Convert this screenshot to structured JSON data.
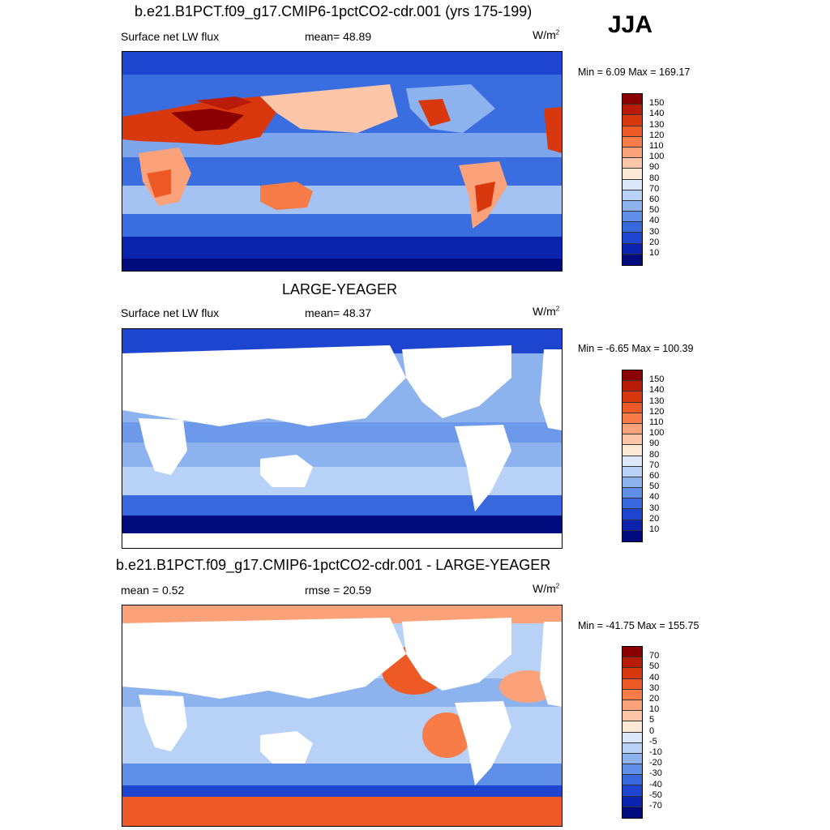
{
  "season": "JJA",
  "panels": [
    {
      "title": "b.e21.B1PCT.f09_g17.CMIP6-1pctCO2-cdr.001 (yrs 175-199)",
      "left_label": "Surface net LW flux",
      "center_label": "mean=  48.89",
      "units_base": "W/m",
      "units_exp": "2",
      "minmax": "Min =   6.09 Max = 169.17",
      "colorbar": {
        "labels": [
          "150",
          "140",
          "130",
          "120",
          "110",
          "100",
          "90",
          "80",
          "70",
          "60",
          "50",
          "40",
          "30",
          "20",
          "10"
        ],
        "colors": [
          "#8b0000",
          "#b81c06",
          "#d9380f",
          "#ee5a26",
          "#f77c48",
          "#fba27a",
          "#fdc6a8",
          "#fde8d6",
          "#dbe8fb",
          "#b7d2f6",
          "#8db3ef",
          "#5f8ee8",
          "#3868de",
          "#1d45cf",
          "#0a24b0",
          "#000c7e"
        ]
      },
      "map": {
        "ocean": "#3a6ee0",
        "land": "warm",
        "type": "full"
      }
    },
    {
      "title": "LARGE-YEAGER",
      "left_label": "Surface net LW flux",
      "center_label": "mean=  48.37",
      "units_base": "W/m",
      "units_exp": "2",
      "minmax": "Min =  -6.65 Max = 100.39",
      "colorbar": {
        "labels": [
          "150",
          "140",
          "130",
          "120",
          "110",
          "100",
          "90",
          "80",
          "70",
          "60",
          "50",
          "40",
          "30",
          "20",
          "10"
        ],
        "colors": [
          "#8b0000",
          "#b81c06",
          "#d9380f",
          "#ee5a26",
          "#f77c48",
          "#fba27a",
          "#fdc6a8",
          "#fde8d6",
          "#dbe8fb",
          "#b7d2f6",
          "#8db3ef",
          "#5f8ee8",
          "#3868de",
          "#1d45cf",
          "#0a24b0",
          "#000c7e"
        ]
      },
      "map": {
        "ocean": "#8db3ef",
        "land": "white",
        "type": "ocean-only"
      }
    },
    {
      "title": "b.e21.B1PCT.f09_g17.CMIP6-1pctCO2-cdr.001 - LARGE-YEAGER",
      "left_label": "mean =   0.52",
      "center_label": "rmse =  20.59",
      "units_base": "W/m",
      "units_exp": "2",
      "minmax": "Min = -41.75 Max = 155.75",
      "colorbar": {
        "labels": [
          "70",
          "50",
          "40",
          "30",
          "20",
          "10",
          "5",
          "0",
          "-5",
          "-10",
          "-20",
          "-30",
          "-40",
          "-50",
          "-70"
        ],
        "colors": [
          "#8b0000",
          "#b81c06",
          "#d9380f",
          "#ee5a26",
          "#f77c48",
          "#fba27a",
          "#fdc6a8",
          "#fde8d6",
          "#dbe8fb",
          "#b7d2f6",
          "#8db3ef",
          "#5f8ee8",
          "#3868de",
          "#1d45cf",
          "#0a24b0",
          "#000c7e"
        ]
      },
      "map": {
        "ocean": "#8db3ef",
        "land": "white",
        "type": "diff"
      }
    }
  ]
}
